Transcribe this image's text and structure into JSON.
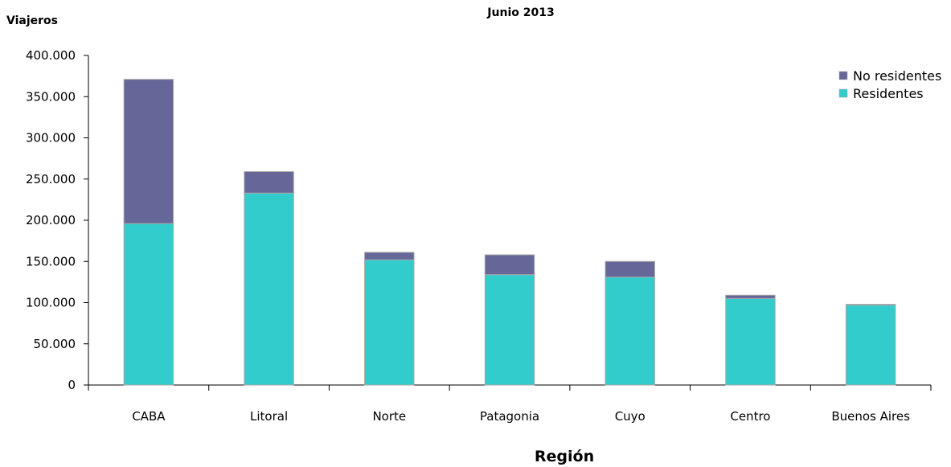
{
  "chart_data": {
    "type": "bar",
    "stacked": true,
    "title": "Junio 2013",
    "ylabel": "Viajeros",
    "xlabel": "Región",
    "ylim": [
      0,
      400000
    ],
    "yticks": [
      "0",
      "50.000",
      "100.000",
      "150.000",
      "200.000",
      "250.000",
      "300.000",
      "350.000",
      "400.000"
    ],
    "categories": [
      "CABA",
      "Litoral",
      "Norte",
      "Patagonia",
      "Cuyo",
      "Centro",
      "Buenos Aires"
    ],
    "series": [
      {
        "name": "Residentes",
        "color": "#33CCCC",
        "values": [
          196000,
          233000,
          152000,
          134000,
          131000,
          105000,
          97000
        ]
      },
      {
        "name": "No residentes",
        "color": "#666699",
        "values": [
          175000,
          26000,
          9000,
          24000,
          19000,
          4000,
          1000
        ]
      }
    ],
    "legend": {
      "position": "top-right",
      "entries": [
        "No residentes",
        "Residentes"
      ]
    },
    "grid": false
  }
}
